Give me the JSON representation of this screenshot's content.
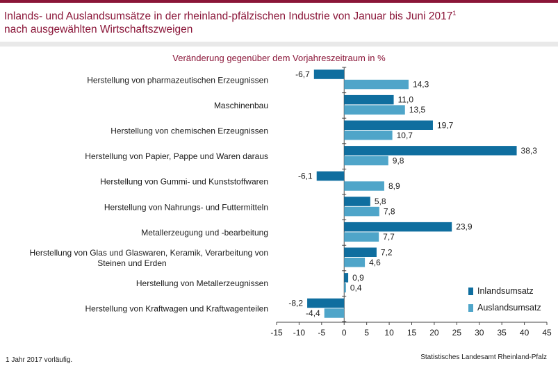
{
  "title": {
    "line1": "Inlands- und Auslandsumsätze in der rheinland-pfälzischen Industrie von Januar bis Juni 2017",
    "footnote_mark": "1",
    "line2": "nach ausgewählten Wirtschaftszweigen"
  },
  "footnote": "1 Jahr 2017 vorläufig.",
  "source": "Statistisches Landesamt Rheinland-Pfalz",
  "colors": {
    "brand": "#8a1538",
    "inland": "#0f6e9f",
    "ausland": "#4fa5c9"
  },
  "chart_data": {
    "type": "bar",
    "orientation": "horizontal",
    "title": "Veränderung gegenüber dem Vorjahreszeitraum in %",
    "xlabel": "",
    "ylabel": "",
    "xlim": [
      -15,
      45
    ],
    "xticks": [
      -15,
      -10,
      -5,
      0,
      5,
      10,
      15,
      20,
      25,
      30,
      35,
      40,
      45
    ],
    "grid": false,
    "legend_position": "bottom-right",
    "categories": [
      [
        "Herstellung von pharmazeutischen Erzeugnissen"
      ],
      [
        "Maschinenbau"
      ],
      [
        "Herstellung von chemischen Erzeugnissen"
      ],
      [
        "Herstellung von Papier, Pappe und Waren daraus"
      ],
      [
        "Herstellung von Gummi- und Kunststoffwaren"
      ],
      [
        "Herstellung von Nahrungs- und Futtermitteln"
      ],
      [
        "Metallerzeugung und -bearbeitung"
      ],
      [
        "Herstellung von Glas und Glaswaren, Keramik, Verarbeitung von",
        "Steinen und Erden"
      ],
      [
        "Herstellung von Metallerzeugnissen"
      ],
      [
        "Herstellung von Kraftwagen und Kraftwagenteilen"
      ]
    ],
    "series": [
      {
        "name": "Inlandsumsatz",
        "values": [
          -6.7,
          11.0,
          19.7,
          38.3,
          -6.1,
          5.8,
          23.9,
          7.2,
          0.9,
          -8.2
        ],
        "labels": [
          "-6,7",
          "11,0",
          "19,7",
          "38,3",
          "-6,1",
          "5,8",
          "23,9",
          "7,2",
          "0,9",
          "-8,2"
        ]
      },
      {
        "name": "Auslandsumsatz",
        "values": [
          14.3,
          13.5,
          10.7,
          9.8,
          8.9,
          7.8,
          7.7,
          4.6,
          0.4,
          -4.4
        ],
        "labels": [
          "14,3",
          "13,5",
          "10,7",
          "9,8",
          "8,9",
          "7,8",
          "7,7",
          "4,6",
          "0,4",
          "-4,4"
        ]
      }
    ]
  }
}
